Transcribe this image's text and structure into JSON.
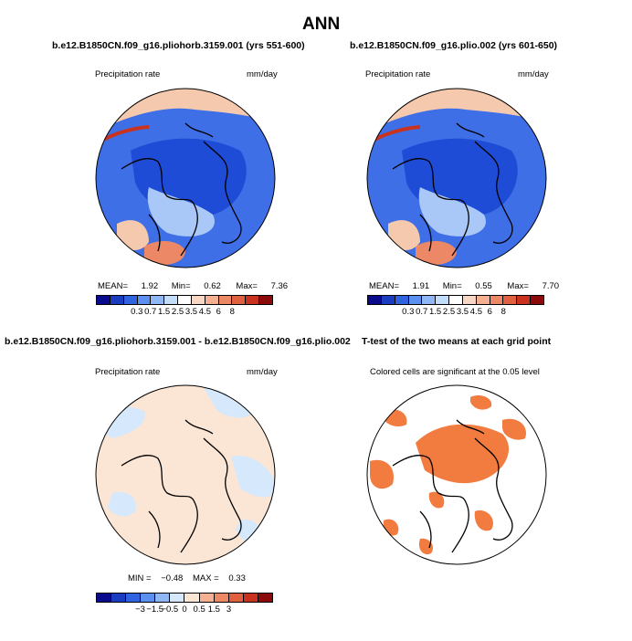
{
  "figure_title": "ANN",
  "panels": {
    "top_left": {
      "title": "b.e12.B1850CN.f09_g16.pliohorb.3159.001 (yrs 551-600)",
      "variable": "Precipitation rate",
      "units": "mm/day",
      "stats": {
        "mean_label": "MEAN=",
        "mean": "1.92",
        "min_label": "Min=",
        "min": "0.62",
        "max_label": "Max=",
        "max": "7.36"
      }
    },
    "top_right": {
      "title": "b.e12.B1850CN.f09_g16.plio.002 (yrs 601-650)",
      "variable": "Precipitation rate",
      "units": "mm/day",
      "stats": {
        "mean_label": "MEAN=",
        "mean": "1.91",
        "min_label": "Min=",
        "min": "0.55",
        "max_label": "Max=",
        "max": "7.70"
      }
    },
    "bottom_left": {
      "title": "b.e12.B1850CN.f09_g16.pliohorb.3159.001 - b.e12.B1850CN.f09_g16.plio.002",
      "variable": "Precipitation rate",
      "units": "mm/day",
      "stats": {
        "min_label": "MIN =",
        "min": "−0.48",
        "max_label": "MAX =",
        "max": "0.33"
      }
    },
    "bottom_right": {
      "title": "T-test of the two means at each grid point",
      "note": "Colored cells are significant at the 0.05 level"
    }
  },
  "colorbars": {
    "abs": {
      "colors": [
        "#0a0a8c",
        "#1a3cc0",
        "#2f63e0",
        "#5b8ff0",
        "#8fb6f5",
        "#c2dcfb",
        "#ffffff",
        "#f8d6c4",
        "#f4b090",
        "#ec8866",
        "#e0603f",
        "#c8321e",
        "#8c0a0a"
      ],
      "ticks": [
        "0.3",
        "0.7",
        "1.5",
        "2.5",
        "3.5",
        "4.5",
        "6",
        "8"
      ]
    },
    "diff": {
      "colors": [
        "#0a0a8c",
        "#1a3cc0",
        "#2f63e0",
        "#5b8ff0",
        "#8fb6f5",
        "#d6e8fb",
        "#fbe6d6",
        "#f4b090",
        "#ec8866",
        "#e0603f",
        "#c8321e",
        "#8c0a0a"
      ],
      "ticks": [
        "−3",
        "−1.5",
        "−0.5",
        "0",
        "0.5",
        "1.5",
        "3"
      ]
    }
  },
  "palette": {
    "ocean_blue": "#3f6fe6",
    "deep_blue": "#1e4cd6",
    "light_blue": "#a9c8f7",
    "peach": "#f5c9ad",
    "salmon": "#ec8866",
    "diff_peach": "#fbe6d6",
    "diff_blue": "#d6e8fb",
    "sig_orange": "#f27b40"
  }
}
